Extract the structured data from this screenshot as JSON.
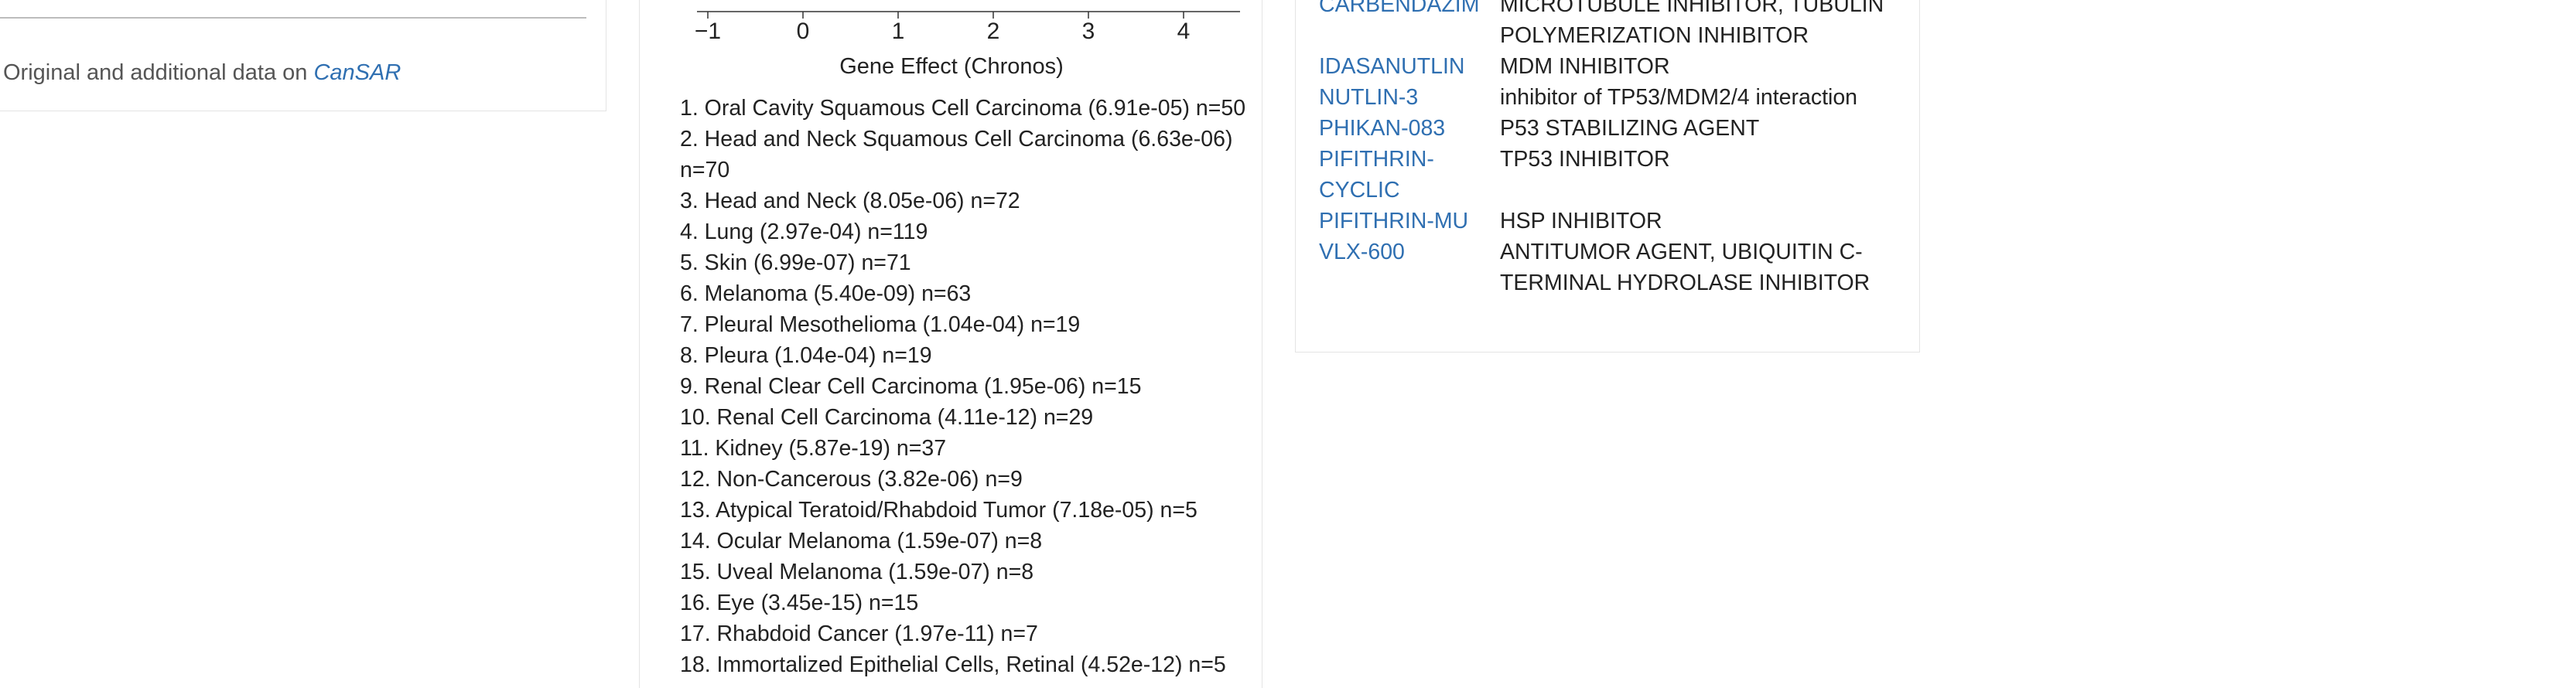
{
  "left_panel": {
    "source_prefix": "Original and additional data on",
    "source_link": "CanSAR"
  },
  "middle_panel": {
    "axis": {
      "ticks": [
        "−1",
        "0",
        "1",
        "2",
        "3",
        "4"
      ],
      "title": "Gene Effect (Chronos)"
    },
    "lineages": [
      "1. Oral Cavity Squamous Cell Carcinoma (6.91e-05) n=50",
      "2. Head and Neck Squamous Cell Carcinoma (6.63e-06) n=70",
      "3. Head and Neck (8.05e-06) n=72",
      "4. Lung (2.97e-04) n=119",
      "5. Skin (6.99e-07) n=71",
      "6. Melanoma (5.40e-09) n=63",
      "7. Pleural Mesothelioma (1.04e-04) n=19",
      "8. Pleura (1.04e-04) n=19",
      "9. Renal Clear Cell Carcinoma (1.95e-06) n=15",
      "10. Renal Cell Carcinoma (4.11e-12) n=29",
      "11. Kidney (5.87e-19) n=37",
      "12. Non-Cancerous (3.82e-06) n=9",
      "13. Atypical Teratoid/Rhabdoid Tumor (7.18e-05) n=5",
      "14. Ocular Melanoma (1.59e-07) n=8",
      "15. Uveal Melanoma (1.59e-07) n=8",
      "16. Eye (3.45e-15) n=15",
      "17. Rhabdoid Cancer (1.97e-11) n=7",
      "18. Immortalized Epithelial Cells, Retinal (4.52e-12) n=5"
    ]
  },
  "right_panel": {
    "drugs": [
      {
        "name": "CARBENDAZIM",
        "moa": "MICROTUBULE INHIBITOR, TUBULIN POLYMERIZATION INHIBITOR"
      },
      {
        "name": "IDASANUTLIN",
        "moa": "MDM INHIBITOR"
      },
      {
        "name": "NUTLIN-3",
        "moa": "inhibitor of TP53/MDM2/4 interaction"
      },
      {
        "name": "PHIKAN-083",
        "moa": "P53 STABILIZING AGENT"
      },
      {
        "name": "PIFITHRIN-CYCLIC",
        "moa": "TP53 INHIBITOR"
      },
      {
        "name": "PIFITHRIN-MU",
        "moa": "HSP INHIBITOR"
      },
      {
        "name": "VLX-600",
        "moa": "ANTITUMOR AGENT, UBIQUITIN C-TERMINAL HYDROLASE INHIBITOR"
      }
    ]
  },
  "colors": {
    "link": "#2f6fb1",
    "text": "#222222",
    "muted": "#555555",
    "border": "#e4e4e4"
  }
}
